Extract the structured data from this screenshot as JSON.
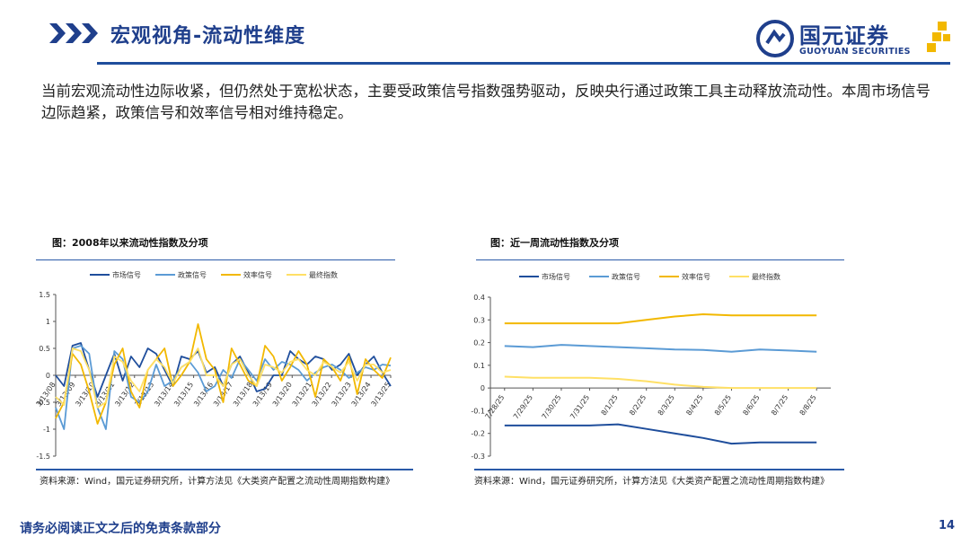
{
  "header": {
    "title": "宏观视角-流动性维度",
    "logo_cn": "国元证券",
    "logo_en": "GUOYUAN SECURITIES"
  },
  "intro_text": "当前宏观流动性边际收紧，但仍然处于宽松状态，主要受政策信号指数强势驱动，反映央行通过政策工具主动释放流动性。本周市场信号边际趋紧，政策信号和效率信号相对维持稳定。",
  "colors": {
    "brand": "#1f3f8c",
    "market": "#1f4e9c",
    "policy": "#5b9bd5",
    "efficiency": "#f2b800",
    "final": "#ffe066"
  },
  "left_panel": {
    "title": "图：2008年以来流动性指数及分项",
    "source": "资料来源：Wind，国元证券研究所，计算方法见《大类资产配置之流动性周期指数构建》"
  },
  "right_panel": {
    "title": "图：近一周流动性指数及分项",
    "source": "资料来源：Wind，国元证券研究所，计算方法见《大类资产配置之流动性周期指数构建》"
  },
  "footer": {
    "note": "请务必阅读正文之后的免责条款部分",
    "page": "14"
  },
  "chart_data": [
    {
      "type": "line",
      "title": "图：2008年以来流动性指数及分项",
      "legend_position": "top",
      "ylim": [
        -1.5,
        1.5
      ],
      "yticks": [
        "1.5",
        "1",
        "0.5",
        "0",
        "-0.5",
        "-1",
        "-1.5"
      ],
      "x_tick_labels": [
        "3/13/08",
        "3/13/09",
        "3/13/10",
        "3/13/11",
        "3/13/12",
        "3/13/13",
        "3/13/14",
        "3/13/15",
        "3/13/16",
        "3/13/17",
        "3/13/18",
        "3/13/19",
        "3/13/20",
        "3/13/21",
        "3/13/22",
        "3/13/23",
        "3/13/24",
        "3/13/25"
      ],
      "series": [
        {
          "name": "市场信号",
          "values": [
            0.0,
            -0.2,
            0.55,
            0.6,
            0.1,
            -0.4,
            0.0,
            0.4,
            -0.1,
            0.35,
            0.15,
            0.5,
            0.4,
            0.1,
            -0.2,
            0.35,
            0.3,
            0.45,
            0.05,
            0.15,
            -0.2,
            0.2,
            0.35,
            0.05,
            -0.3,
            -0.25,
            0.0,
            0.0,
            0.45,
            0.3,
            0.2,
            0.35,
            0.3,
            0.1,
            0.2,
            0.4,
            0.0,
            0.2,
            0.35,
            0.05,
            -0.2
          ]
        },
        {
          "name": "政策信号",
          "values": [
            -0.6,
            -1.0,
            0.5,
            0.55,
            0.4,
            -0.6,
            -1.0,
            0.45,
            0.3,
            -0.4,
            -0.5,
            -0.3,
            0.2,
            -0.2,
            -0.1,
            0.15,
            0.25,
            0.05,
            -0.3,
            -0.2,
            0.1,
            -0.05,
            0.3,
            0.1,
            -0.1,
            0.3,
            0.1,
            0.25,
            0.2,
            0.1,
            -0.1,
            0.05,
            0.15,
            0.2,
            0.1,
            -0.05,
            0.05,
            0.15,
            0.1,
            0.2,
            0.18
          ]
        },
        {
          "name": "效率信号",
          "values": [
            -0.8,
            -0.5,
            0.4,
            0.2,
            -0.3,
            -0.9,
            -0.5,
            0.2,
            0.5,
            -0.3,
            -0.6,
            0.1,
            0.3,
            0.5,
            -0.2,
            0.0,
            0.25,
            0.95,
            0.3,
            0.1,
            -0.5,
            0.5,
            0.2,
            -0.1,
            -0.2,
            0.55,
            0.35,
            -0.1,
            0.15,
            0.45,
            0.2,
            -0.4,
            0.3,
            0.15,
            -0.1,
            0.35,
            -0.35,
            0.3,
            0.1,
            -0.05,
            0.33
          ]
        },
        {
          "name": "最终指数",
          "values": [
            -0.4,
            -0.55,
            0.5,
            0.45,
            0.1,
            -0.6,
            -0.5,
            0.35,
            0.25,
            -0.1,
            -0.3,
            0.1,
            0.3,
            0.15,
            -0.15,
            0.15,
            0.25,
            0.5,
            0.0,
            0.0,
            -0.2,
            0.2,
            0.3,
            0.0,
            -0.2,
            0.2,
            0.15,
            0.05,
            0.25,
            0.3,
            0.1,
            0.0,
            0.25,
            0.15,
            0.05,
            0.25,
            -0.1,
            0.2,
            0.2,
            0.05,
            0.1
          ]
        }
      ]
    },
    {
      "type": "line",
      "title": "图：近一周流动性指数及分项",
      "legend_position": "top",
      "ylim": [
        -0.3,
        0.4
      ],
      "yticks": [
        "0.4",
        "0.3",
        "0.2",
        "0.1",
        "0",
        "-0.1",
        "-0.2",
        "-0.3"
      ],
      "categories": [
        "7/28/25",
        "7/29/25",
        "7/30/25",
        "7/31/25",
        "8/1/25",
        "8/2/25",
        "8/3/25",
        "8/4/25",
        "8/5/25",
        "8/6/25",
        "8/7/25",
        "8/8/25"
      ],
      "series": [
        {
          "name": "市场信号",
          "values": [
            -0.165,
            -0.165,
            -0.165,
            -0.165,
            -0.16,
            -0.18,
            -0.2,
            -0.22,
            -0.245,
            -0.24,
            -0.24,
            -0.24
          ]
        },
        {
          "name": "政策信号",
          "values": [
            0.185,
            0.18,
            0.19,
            0.185,
            0.18,
            0.175,
            0.17,
            0.168,
            0.16,
            0.17,
            0.165,
            0.16
          ]
        },
        {
          "name": "效率信号",
          "values": [
            0.285,
            0.285,
            0.285,
            0.285,
            0.285,
            0.3,
            0.315,
            0.325,
            0.32,
            0.32,
            0.32,
            0.32
          ]
        },
        {
          "name": "最终指数",
          "values": [
            0.05,
            0.045,
            0.045,
            0.045,
            0.04,
            0.03,
            0.015,
            0.005,
            0.0,
            0.0,
            0.0,
            0.0
          ]
        }
      ]
    }
  ]
}
